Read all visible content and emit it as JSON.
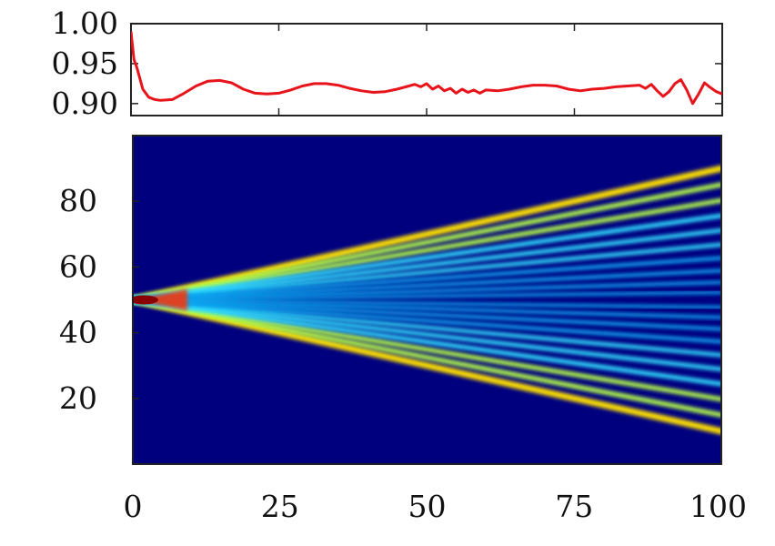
{
  "chart_data": [
    {
      "type": "line",
      "title": "",
      "xlabel": "",
      "ylabel": "",
      "xlim": [
        0,
        100
      ],
      "ylim": [
        0.885,
        1.0
      ],
      "grid": false,
      "ytick_labels": [
        "1.00",
        "0.95",
        "0.90"
      ],
      "yticks": [
        1.0,
        0.95,
        0.9
      ],
      "xticks": [
        0,
        25,
        50,
        75,
        100
      ],
      "colors": {
        "line": "#e8141b"
      },
      "series": [
        {
          "x": [
            0,
            0.5,
            1,
            2,
            3,
            4,
            5,
            7,
            9,
            11,
            13,
            15,
            17,
            19,
            21,
            23,
            25,
            27,
            29,
            31,
            33,
            35,
            37,
            39,
            41,
            43,
            45,
            47,
            48,
            49,
            50,
            51,
            52,
            53,
            54,
            55,
            56,
            57,
            58,
            59,
            60,
            62,
            64,
            66,
            68,
            70,
            72,
            74,
            76,
            78,
            80,
            82,
            84,
            86,
            87,
            88,
            89,
            90,
            91,
            92,
            93,
            94,
            95,
            96,
            97,
            98,
            99,
            100
          ],
          "y": [
            0.99,
            0.955,
            0.945,
            0.918,
            0.908,
            0.905,
            0.904,
            0.905,
            0.913,
            0.922,
            0.928,
            0.929,
            0.926,
            0.918,
            0.913,
            0.912,
            0.913,
            0.917,
            0.922,
            0.925,
            0.925,
            0.923,
            0.919,
            0.916,
            0.914,
            0.915,
            0.918,
            0.922,
            0.924,
            0.921,
            0.925,
            0.918,
            0.922,
            0.916,
            0.919,
            0.913,
            0.918,
            0.914,
            0.917,
            0.913,
            0.917,
            0.916,
            0.918,
            0.921,
            0.923,
            0.923,
            0.922,
            0.918,
            0.916,
            0.918,
            0.919,
            0.921,
            0.922,
            0.923,
            0.919,
            0.924,
            0.916,
            0.909,
            0.915,
            0.925,
            0.93,
            0.917,
            0.9,
            0.912,
            0.926,
            0.92,
            0.915,
            0.912
          ]
        }
      ]
    },
    {
      "type": "heatmap",
      "title": "",
      "xlabel": "",
      "ylabel": "",
      "xlim": [
        0,
        100
      ],
      "ylim": [
        0,
        100
      ],
      "xticks": [
        0,
        25,
        50,
        75,
        100
      ],
      "xtick_labels": [
        "0",
        "25",
        "50",
        "75",
        "100"
      ],
      "yticks": [
        20,
        40,
        60,
        80
      ],
      "ytick_labels": [
        "20",
        "40",
        "60",
        "80"
      ],
      "colormap": "jet",
      "background_color": "#00007f",
      "pattern": "light cone spreading from site 50 at time 0; outermost fronts reach about site 10 and site 90 at time 100, with interference fringes inside",
      "source_site": 50,
      "front_sites_at_end": [
        10,
        90
      ],
      "grid": false
    }
  ]
}
